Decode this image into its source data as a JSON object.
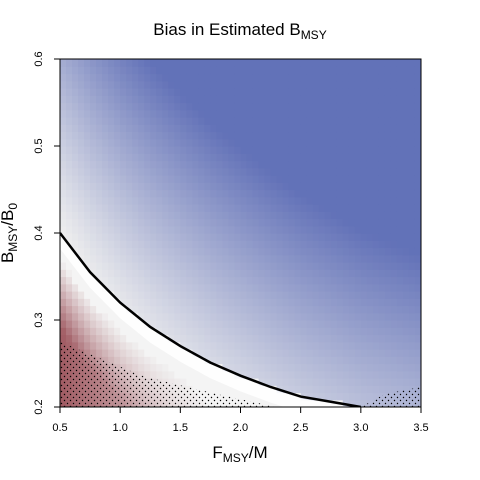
{
  "chart_data": {
    "type": "heatmap",
    "title": "Bias in Estimated B",
    "title_sub": "MSY",
    "xlabel": {
      "main": "F",
      "sub": "MSY",
      "tail": "/M"
    },
    "ylabel": {
      "main": "B",
      "sub": "MSY",
      "mid": "/B",
      "sub2": "0"
    },
    "xlim": [
      0.5,
      3.5
    ],
    "ylim": [
      0.2,
      0.6
    ],
    "x_ticks": [
      "0.5",
      "1.0",
      "1.5",
      "2.0",
      "2.5",
      "3.0",
      "3.5"
    ],
    "y_ticks": [
      "0.2",
      "0.3",
      "0.4",
      "0.5",
      "0.6"
    ],
    "grid": false,
    "colors": {
      "negative_max": "#5b6bb5",
      "neutral": "#eeeeee",
      "positive_max": "#a05a62",
      "contour": "#000000",
      "stipple": "#000000"
    },
    "contour_line": {
      "label": "",
      "x": [
        0.5,
        0.75,
        1.0,
        1.25,
        1.5,
        1.75,
        2.0,
        2.25,
        2.5,
        2.75,
        3.0
      ],
      "y": [
        0.4,
        0.355,
        0.32,
        0.292,
        0.27,
        0.251,
        0.236,
        0.223,
        0.212,
        0.206,
        0.2
      ]
    },
    "stippled_region": "undefined (below feasible boundary)"
  }
}
